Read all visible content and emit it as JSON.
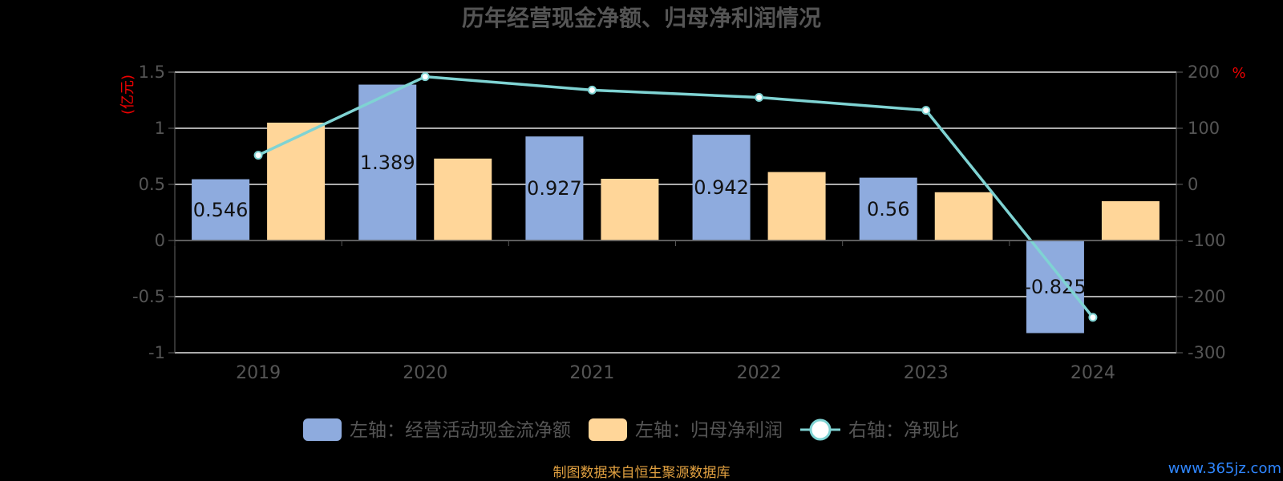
{
  "chart_data": {
    "type": "bar",
    "title": "历年经营现金净额、归母净利润情况",
    "categories": [
      "2019",
      "2020",
      "2021",
      "2022",
      "2023",
      "2024"
    ],
    "left_axis": {
      "label": "(亿元)",
      "ylim": [
        -1,
        1.5
      ],
      "ticks": [
        "1.5",
        "1",
        "0.5",
        "0",
        "-0.5",
        "-1"
      ]
    },
    "right_axis": {
      "label": "%",
      "ylim": [
        -300,
        200
      ],
      "ticks": [
        "200",
        "100",
        "0",
        "-100",
        "-200",
        "-300"
      ]
    },
    "series": [
      {
        "name": "左轴：经营活动现金流净额",
        "kind": "bar",
        "axis": "left",
        "color": "#8eabde",
        "values": [
          0.546,
          1.389,
          0.927,
          0.942,
          0.56,
          -0.825
        ],
        "labels": [
          "0.546",
          "1.389",
          "0.927",
          "0.942",
          "0.56",
          "-0.825"
        ]
      },
      {
        "name": "左轴：归母净利润",
        "kind": "bar",
        "axis": "left",
        "color": "#ffd699",
        "values": [
          1.05,
          0.73,
          0.55,
          0.61,
          0.43,
          0.35
        ]
      },
      {
        "name": "右轴：净现比",
        "kind": "line",
        "axis": "right",
        "color": "#7fd3d3",
        "values": [
          52,
          192,
          168,
          155,
          132,
          -237
        ]
      }
    ],
    "grid": true,
    "legend": "bottom-center"
  },
  "footer": {
    "source": "制图数据来自恒生聚源数据库",
    "watermark": "www.365jz.com"
  }
}
